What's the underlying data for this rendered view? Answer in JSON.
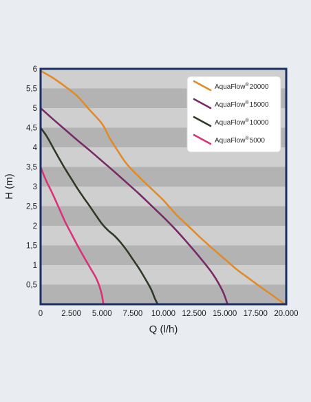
{
  "chart_data": {
    "type": "line",
    "title": "",
    "xlabel": "Q (l/h)",
    "ylabel": "H (m)",
    "xlim": [
      0,
      20000
    ],
    "ylim": [
      0,
      6
    ],
    "x_ticks": [
      {
        "value": 0,
        "label": "0"
      },
      {
        "value": 2500,
        "label": "2.500"
      },
      {
        "value": 5000,
        "label": "5.000"
      },
      {
        "value": 7500,
        "label": "7.500"
      },
      {
        "value": 10000,
        "label": "10.000"
      },
      {
        "value": 12500,
        "label": "12.500"
      },
      {
        "value": 15000,
        "label": "15.000"
      },
      {
        "value": 17500,
        "label": "17.500"
      },
      {
        "value": 20000,
        "label": "20.000"
      }
    ],
    "y_ticks": [
      {
        "value": 0.5,
        "label": "0,5"
      },
      {
        "value": 1,
        "label": "1"
      },
      {
        "value": 1.5,
        "label": "1,5"
      },
      {
        "value": 2,
        "label": "2"
      },
      {
        "value": 2.5,
        "label": "2,5"
      },
      {
        "value": 3,
        "label": "3"
      },
      {
        "value": 3.5,
        "label": "3,5"
      },
      {
        "value": 4,
        "label": "4"
      },
      {
        "value": 4.5,
        "label": "4,5"
      },
      {
        "value": 5,
        "label": "5"
      },
      {
        "value": 5.5,
        "label": "5,5"
      },
      {
        "value": 6,
        "label": "6"
      }
    ],
    "grid": "alternating horizontal bands",
    "band_colors": [
      "#b3b3b3",
      "#cfcfcf"
    ],
    "plot_border_color": "#1a2f63",
    "legend_position": "top-right",
    "series": [
      {
        "name": "AquaFlow",
        "name_sup": "®",
        "name_suffix": "20000",
        "color": "#e08a2a",
        "points": [
          [
            0,
            5.95
          ],
          [
            1000,
            5.77
          ],
          [
            2000,
            5.55
          ],
          [
            3000,
            5.3
          ],
          [
            4000,
            4.95
          ],
          [
            5000,
            4.6
          ],
          [
            5600,
            4.25
          ],
          [
            6200,
            3.95
          ],
          [
            7000,
            3.58
          ],
          [
            8000,
            3.25
          ],
          [
            9000,
            2.95
          ],
          [
            10000,
            2.65
          ],
          [
            11000,
            2.3
          ],
          [
            12000,
            2.0
          ],
          [
            13000,
            1.7
          ],
          [
            14000,
            1.42
          ],
          [
            15000,
            1.15
          ],
          [
            16000,
            0.88
          ],
          [
            17000,
            0.65
          ],
          [
            18000,
            0.42
          ],
          [
            19000,
            0.2
          ],
          [
            19800,
            0.02
          ]
        ]
      },
      {
        "name": "AquaFlow",
        "name_sup": "®",
        "name_suffix": "15000",
        "color": "#772a66",
        "points": [
          [
            0,
            5.0
          ],
          [
            1000,
            4.72
          ],
          [
            2000,
            4.45
          ],
          [
            3000,
            4.18
          ],
          [
            4000,
            3.92
          ],
          [
            5000,
            3.65
          ],
          [
            6000,
            3.38
          ],
          [
            7000,
            3.1
          ],
          [
            8000,
            2.82
          ],
          [
            9000,
            2.52
          ],
          [
            10000,
            2.22
          ],
          [
            11000,
            1.9
          ],
          [
            12000,
            1.55
          ],
          [
            13000,
            1.18
          ],
          [
            14000,
            0.78
          ],
          [
            14800,
            0.35
          ],
          [
            15200,
            0.02
          ]
        ]
      },
      {
        "name": "AquaFlow",
        "name_sup": "®",
        "name_suffix": "10000",
        "color": "#2f3a26",
        "points": [
          [
            0,
            4.5
          ],
          [
            500,
            4.28
          ],
          [
            1000,
            4.0
          ],
          [
            1500,
            3.72
          ],
          [
            2000,
            3.45
          ],
          [
            2500,
            3.2
          ],
          [
            3000,
            2.95
          ],
          [
            3500,
            2.72
          ],
          [
            4000,
            2.5
          ],
          [
            4500,
            2.27
          ],
          [
            5000,
            2.05
          ],
          [
            5500,
            1.88
          ],
          [
            6000,
            1.75
          ],
          [
            6500,
            1.58
          ],
          [
            7000,
            1.38
          ],
          [
            7500,
            1.15
          ],
          [
            8000,
            0.92
          ],
          [
            8500,
            0.66
          ],
          [
            9000,
            0.38
          ],
          [
            9300,
            0.15
          ],
          [
            9500,
            0.02
          ]
        ]
      },
      {
        "name": "AquaFlow",
        "name_sup": "®",
        "name_suffix": "5000",
        "color": "#d9327a",
        "points": [
          [
            0,
            3.5
          ],
          [
            250,
            3.3
          ],
          [
            500,
            3.12
          ],
          [
            1000,
            2.8
          ],
          [
            1500,
            2.45
          ],
          [
            2000,
            2.1
          ],
          [
            2500,
            1.8
          ],
          [
            3000,
            1.5
          ],
          [
            3500,
            1.22
          ],
          [
            4000,
            0.95
          ],
          [
            4500,
            0.68
          ],
          [
            4800,
            0.45
          ],
          [
            5000,
            0.22
          ],
          [
            5100,
            0.02
          ]
        ]
      }
    ]
  }
}
